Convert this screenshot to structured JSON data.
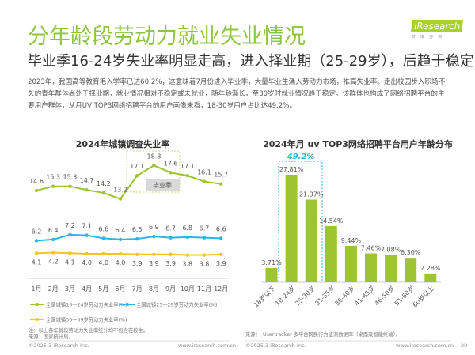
{
  "header": {
    "title": "分年龄段劳动力就业失业情况",
    "subtitle": "毕业季16-24岁失业率明显走高，进入择业期（25-29岁），后趋于稳定",
    "paragraph": "2023年，我国高等教育毛入学率已达60.2%，这意味着7月份进入毕业季，大量毕业生涌入劳动力市场，推高失业率。走出校园步入职场不久的青年群体尚处于择业期，就业情况相对不稳定或未就业，随年龄渐长，至30岁时就业情况趋于稳定。该群体也构成了网络招聘平台的主要用户群体，从月UV TOP3网络招聘平台的用户画像来看，18-30岁用户占比达49.2%。"
  },
  "logo": {
    "brand": "iResearch",
    "sub": "艾瑞咨询"
  },
  "colors": {
    "green": "#9dc431",
    "blue": "#29b6e6",
    "yellow": "#f5c518",
    "title": "#8cc63f"
  },
  "chart_data": [
    {
      "type": "line",
      "title": "2024年城镇调查失业率",
      "categories": [
        "1月",
        "2月",
        "3月",
        "4月",
        "5月",
        "6月",
        "7月",
        "8月",
        "9月",
        "10月",
        "11月",
        "12月"
      ],
      "series": [
        {
          "name": "全国城镇16—24岁劳动力失业率(%)",
          "values": [
            14.6,
            15.3,
            15.3,
            14.7,
            14.2,
            13.2,
            17.1,
            18.8,
            17.6,
            17.1,
            16.1,
            15.7
          ]
        },
        {
          "name": "全国城镇25—29岁劳动力失业率(%)",
          "values": [
            6.2,
            6.4,
            7.2,
            7.1,
            6.6,
            6.4,
            6.5,
            6.9,
            6.7,
            6.8,
            6.7,
            6.6
          ]
        },
        {
          "name": "全国城镇30—59岁劳动力失业率(%)",
          "values": [
            4.1,
            4.2,
            4.1,
            4.0,
            4.0,
            4.0,
            3.9,
            3.9,
            3.9,
            3.8,
            3.8,
            3.9
          ]
        }
      ],
      "annotation": "毕业季",
      "note": "注：以上各年龄段劳动力失业率统计均不包含在校生。",
      "source": "来源：国家统计局。"
    },
    {
      "type": "bar",
      "title": "2024年月 uv TOP3网络招聘平台用户年龄分布",
      "categories": [
        "18岁以下",
        "18-24岁",
        "25-30岁",
        "31-35岁",
        "36-40岁",
        "41-45岁",
        "46-50岁",
        "51-60岁",
        "60岁以上"
      ],
      "values": [
        3.71,
        27.81,
        21.37,
        14.54,
        9.44,
        7.46,
        7.08,
        6.3,
        2.28
      ],
      "unit": "%",
      "annotation": "49.2%",
      "source": "来源：　Usertracker 多平台网民行为监测数据库（桌面及智能终端）。"
    }
  ],
  "footer": {
    "copyright": "©2025.3 iResearch Inc.",
    "url": "www.iresearch.com.cn",
    "page": "20"
  }
}
